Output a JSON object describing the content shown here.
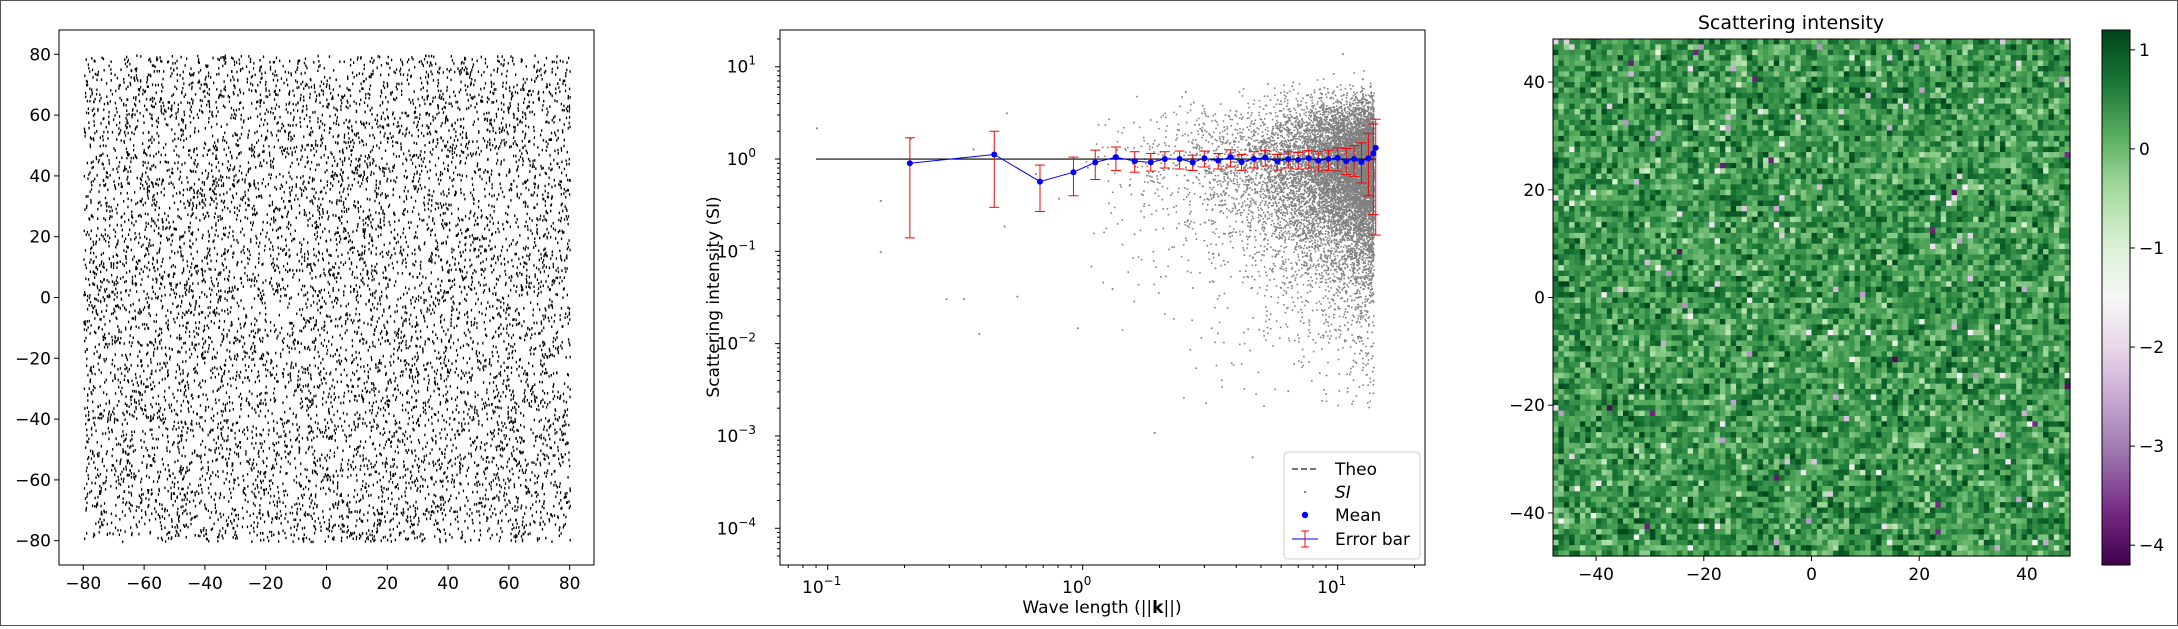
{
  "chart_data": [
    {
      "type": "scatter",
      "title": "",
      "xlabel": "",
      "ylabel": "",
      "xlim": [
        -88,
        88
      ],
      "ylim": [
        -88,
        88
      ],
      "xticks": [
        -80,
        -60,
        -40,
        -20,
        0,
        20,
        40,
        60,
        80
      ],
      "yticks": [
        -80,
        -60,
        -40,
        -20,
        0,
        20,
        40,
        60,
        80
      ],
      "xtick_labels": [
        "−80",
        "−60",
        "−40",
        "−20",
        "0",
        "20",
        "40",
        "60",
        "80"
      ],
      "ytick_labels": [
        "−80",
        "−60",
        "−40",
        "−20",
        "0",
        "20",
        "40",
        "60",
        "80"
      ],
      "points": {
        "distribution": "uniform",
        "x_range": [
          -80,
          80
        ],
        "y_range": [
          -80,
          80
        ],
        "count_estimate": 9000,
        "color": "#000000"
      }
    },
    {
      "type": "scatter",
      "title": "",
      "xlabel": "Wave length (||k||)",
      "xlabel_parts": [
        "Wave length (||",
        "k",
        "||)"
      ],
      "ylabel": "Scattering intensity (SI)",
      "xscale": "log",
      "yscale": "log",
      "xlim": [
        0.065,
        22
      ],
      "ylim": [
        4e-05,
        25
      ],
      "xticks": [
        0.1,
        1,
        10
      ],
      "xtick_labels": [
        {
          "base": "10",
          "exp": "−1"
        },
        {
          "base": "10",
          "exp": "0"
        },
        {
          "base": "10",
          "exp": "1"
        }
      ],
      "yticks": [
        0.0001,
        0.001,
        0.01,
        0.1,
        1,
        10
      ],
      "ytick_labels": [
        {
          "base": "10",
          "exp": "−4"
        },
        {
          "base": "10",
          "exp": "−3"
        },
        {
          "base": "10",
          "exp": "−2"
        },
        {
          "base": "10",
          "exp": "−1"
        },
        {
          "base": "10",
          "exp": "0"
        },
        {
          "base": "10",
          "exp": "1"
        }
      ],
      "legend_position": "lower-right",
      "legend": [
        "Theo",
        "SI",
        "Mean",
        "Error bar"
      ],
      "series": [
        {
          "name": "Theo",
          "kind": "line",
          "color": "#000000",
          "x": [
            0.09,
            14.1
          ],
          "y": [
            1,
            1
          ]
        },
        {
          "name": "SI",
          "kind": "scatter",
          "color": "#808080",
          "sample_points": [
            {
              "x": 0.09,
              "y": 2.2
            },
            {
              "x": 0.16,
              "y": 0.1
            },
            {
              "x": 0.16,
              "y": 0.36
            },
            {
              "x": 0.21,
              "y": 1.7
            },
            {
              "x": 0.29,
              "y": 0.031
            },
            {
              "x": 0.34,
              "y": 0.031
            },
            {
              "x": 0.37,
              "y": 1.3
            },
            {
              "x": 0.39,
              "y": 0.013
            },
            {
              "x": 0.49,
              "y": 0.19
            },
            {
              "x": 0.5,
              "y": 3.2
            },
            {
              "x": 0.55,
              "y": 0.033
            },
            {
              "x": 0.65,
              "y": 0.7
            },
            {
              "x": 0.8,
              "y": 0.38
            },
            {
              "x": 0.95,
              "y": 0.015
            },
            {
              "x": 1.3,
              "y": 0.04
            },
            {
              "x": 1.9,
              "y": 0.0011
            },
            {
              "x": 4.6,
              "y": 0.0006
            },
            {
              "x": 10.4,
              "y": 14.0
            },
            {
              "x": 12.0,
              "y": 0.0006
            }
          ],
          "count_estimate": 10000
        },
        {
          "name": "Mean",
          "kind": "line+markers",
          "color": "#0000ff",
          "x": [
            0.21,
            0.45,
            0.68,
            0.92,
            1.12,
            1.35,
            1.6,
            1.85,
            2.1,
            2.4,
            2.7,
            3.0,
            3.4,
            3.8,
            4.2,
            4.7,
            5.2,
            5.8,
            6.4,
            7.0,
            7.7,
            8.4,
            9.2,
            10.0,
            10.8,
            11.6,
            12.4,
            13.2,
            13.8,
            14.1
          ],
          "y": [
            0.9,
            1.12,
            0.57,
            0.72,
            0.92,
            1.05,
            0.95,
            0.92,
            1.0,
            1.0,
            0.92,
            1.02,
            0.96,
            1.05,
            0.93,
            1.0,
            1.04,
            0.94,
            1.0,
            0.98,
            1.02,
            0.96,
            1.0,
            1.03,
            0.95,
            1.0,
            0.93,
            1.02,
            1.15,
            1.32
          ]
        },
        {
          "name": "Error bar",
          "kind": "errorbar",
          "color": "#ff0000",
          "x": [
            0.21,
            0.45,
            0.68,
            0.92,
            1.12,
            1.35,
            1.6,
            1.85,
            2.1,
            2.4,
            2.7,
            3.0,
            3.4,
            3.8,
            4.2,
            4.7,
            5.2,
            5.8,
            6.4,
            7.0,
            7.7,
            8.4,
            9.2,
            10.0,
            10.8,
            11.6,
            12.4,
            13.2,
            13.8,
            14.1
          ],
          "low": [
            0.14,
            0.3,
            0.27,
            0.4,
            0.6,
            0.75,
            0.72,
            0.74,
            0.8,
            0.78,
            0.75,
            0.82,
            0.78,
            0.82,
            0.75,
            0.8,
            0.84,
            0.76,
            0.8,
            0.78,
            0.8,
            0.74,
            0.75,
            0.74,
            0.68,
            0.65,
            0.55,
            0.4,
            0.25,
            0.15
          ],
          "high": [
            1.7,
            2.0,
            0.86,
            1.05,
            1.25,
            1.35,
            1.2,
            1.15,
            1.2,
            1.22,
            1.1,
            1.22,
            1.15,
            1.26,
            1.12,
            1.2,
            1.24,
            1.12,
            1.2,
            1.18,
            1.24,
            1.2,
            1.25,
            1.32,
            1.3,
            1.4,
            1.5,
            1.9,
            2.4,
            2.7
          ]
        }
      ]
    },
    {
      "type": "heatmap",
      "title": "Scattering intensity",
      "xlabel": "",
      "ylabel": "",
      "xlim": [
        -48,
        48
      ],
      "ylim": [
        -48,
        48
      ],
      "xticks": [
        -40,
        -20,
        0,
        20,
        40
      ],
      "yticks": [
        -40,
        -20,
        0,
        20,
        40
      ],
      "xtick_labels": [
        "−40",
        "−20",
        "0",
        "20",
        "40"
      ],
      "ytick_labels": [
        "−40",
        "−20",
        "0",
        "20",
        "40"
      ],
      "grid_size": [
        96,
        96
      ],
      "value_distribution": {
        "typical_range": [
          -1,
          1
        ],
        "min": -4.2,
        "max": 1.2
      },
      "colormap": "PRGn",
      "colorbar": {
        "range": [
          -4.2,
          1.2
        ],
        "ticks": [
          1,
          0,
          -1,
          -2,
          -3,
          -4
        ],
        "tick_labels": [
          "1",
          "0",
          "−1",
          "−2",
          "−3",
          "−4"
        ],
        "colors": [
          "#40004b",
          "#762a83",
          "#9970ab",
          "#c2a5cf",
          "#e7d4e8",
          "#f7f7f7",
          "#d9f0d3",
          "#a6dba0",
          "#5aae61",
          "#1b7837",
          "#00441b"
        ]
      }
    }
  ]
}
